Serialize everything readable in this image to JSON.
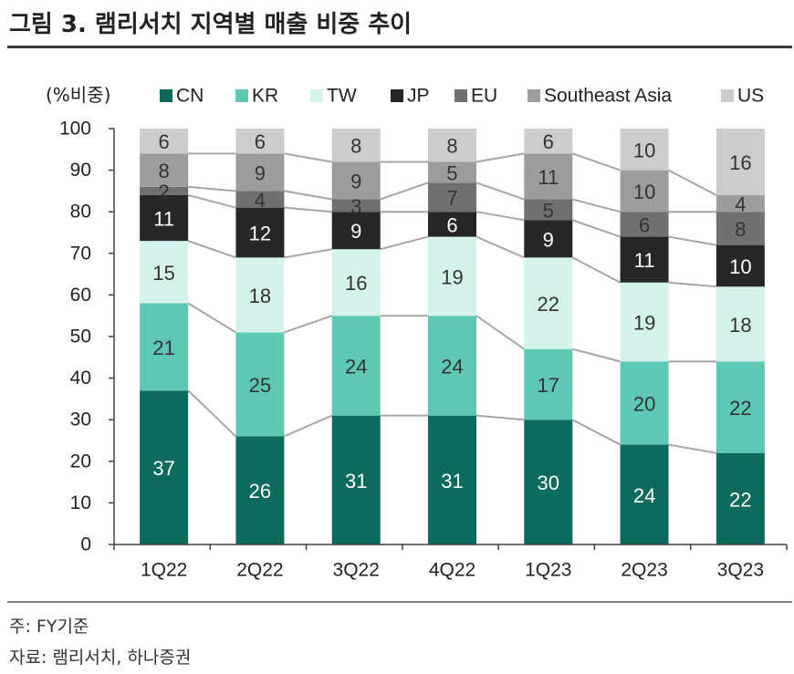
{
  "chart_data": {
    "type": "bar",
    "stacked": true,
    "title": "그림 3. 램리서치 지역별 매출 비중 추이",
    "ylabel": "(%비중)",
    "ylim": [
      0,
      100
    ],
    "yticks": [
      0,
      10,
      20,
      30,
      40,
      50,
      60,
      70,
      80,
      90,
      100
    ],
    "categories": [
      "1Q22",
      "2Q22",
      "3Q22",
      "4Q22",
      "1Q23",
      "2Q23",
      "3Q23"
    ],
    "series": [
      {
        "name": "CN",
        "values": [
          37,
          26,
          31,
          31,
          30,
          24,
          22
        ],
        "color": "#0c6b5c",
        "label_color": "#ffffff"
      },
      {
        "name": "KR",
        "values": [
          21,
          25,
          24,
          24,
          17,
          20,
          22
        ],
        "color": "#5fc8b5",
        "label_color": "#333333"
      },
      {
        "name": "TW",
        "values": [
          15,
          18,
          16,
          19,
          22,
          19,
          18
        ],
        "color": "#d5f2eb",
        "label_color": "#333333"
      },
      {
        "name": "JP",
        "values": [
          11,
          12,
          9,
          6,
          9,
          11,
          10
        ],
        "color": "#262626",
        "label_color": "#ffffff"
      },
      {
        "name": "EU",
        "values": [
          2,
          4,
          3,
          7,
          5,
          6,
          8
        ],
        "color": "#707070",
        "label_color": "#333333"
      },
      {
        "name": "Southeast Asia",
        "values": [
          8,
          9,
          9,
          5,
          11,
          10,
          4
        ],
        "color": "#9d9d9d",
        "label_color": "#333333"
      },
      {
        "name": "US",
        "values": [
          6,
          6,
          8,
          8,
          6,
          10,
          16
        ],
        "color": "#cccccc",
        "label_color": "#333333"
      }
    ],
    "legend": "top",
    "grid": false,
    "connector_lines": true,
    "connector_color": "#a6a6a6",
    "axis_color": "#404040"
  },
  "footer": {
    "note": "주: FY기준",
    "source": "자료: 램리서치, 하나증권"
  }
}
